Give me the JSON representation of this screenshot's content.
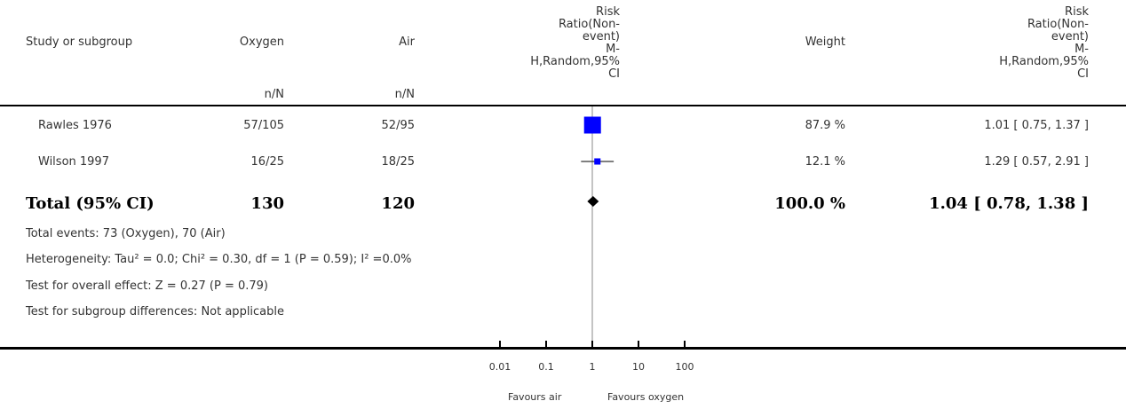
{
  "columns": {
    "study": "Study or subgroup",
    "oxygen": "Oxygen",
    "air": "Air",
    "oxygen_sub": "n/N",
    "air_sub": "n/N",
    "plot_header": [
      "Risk",
      "Ratio(Non-",
      "event)",
      "M-",
      "H,Random,95%",
      "CI"
    ],
    "weight": "Weight",
    "effect_header": [
      "Risk",
      "Ratio(Non-",
      "event)",
      "M-",
      "H,Random,95%",
      "CI"
    ]
  },
  "rows": [
    {
      "study": "Rawles 1976",
      "oxygen": "57/105",
      "air": "52/95",
      "weight": "87.9 %",
      "effect": "1.01 [ 0.75, 1.37 ]"
    },
    {
      "study": "Wilson 1997",
      "oxygen": "16/25",
      "air": "18/25",
      "weight": "12.1 %",
      "effect": "1.29 [ 0.57, 2.91 ]"
    }
  ],
  "total": {
    "label": "Total (95% CI)",
    "oxygen": "130",
    "air": "120",
    "weight": "100.0 %",
    "effect": "1.04 [ 0.78, 1.38 ]"
  },
  "notes": {
    "events": "Total events: 73 (Oxygen), 70 (Air)",
    "heterogeneity": "Heterogeneity: Tau² = 0.0; Chi² = 0.30, df = 1 (P = 0.59); I² =0.0%",
    "overall": "Test for overall effect: Z = 0.27 (P = 0.79)",
    "subgroup": "Test for subgroup differences: Not applicable"
  },
  "chart_data": {
    "type": "forest",
    "x_scale": "log",
    "xlim": [
      0.01,
      100
    ],
    "ticks": [
      "0.01",
      "0.1",
      "1",
      "10",
      "100"
    ],
    "tick_values": [
      0.01,
      0.1,
      1,
      10,
      100
    ],
    "favours_left": "Favours air",
    "favours_right": "Favours oxygen",
    "studies": [
      {
        "name": "Rawles 1976",
        "estimate": 1.01,
        "ci": [
          0.75,
          1.37
        ],
        "weight": 87.9
      },
      {
        "name": "Wilson 1997",
        "estimate": 1.29,
        "ci": [
          0.57,
          2.91
        ],
        "weight": 12.1
      }
    ],
    "pooled": {
      "estimate": 1.04,
      "ci": [
        0.78,
        1.38
      ]
    },
    "colors": {
      "marker": "#0000ff",
      "line": "#000000",
      "reference": "#888888"
    }
  }
}
